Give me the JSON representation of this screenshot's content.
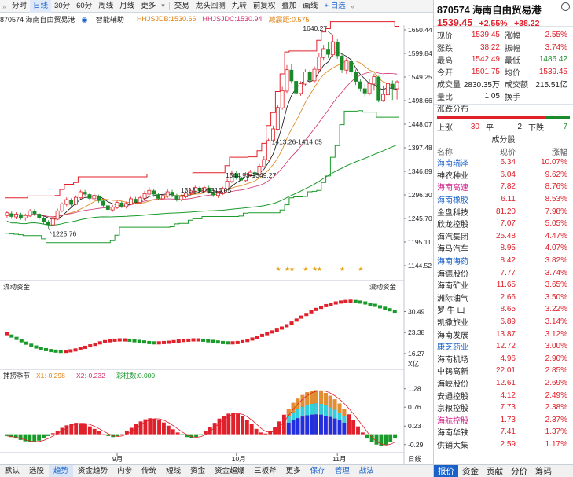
{
  "toolbar": {
    "items": [
      "分时",
      "日线",
      "30分",
      "60分",
      "周线",
      "月线",
      "更多",
      "交易",
      "龙头回测",
      "九转",
      "前复权",
      "叠加",
      "画线",
      "自选"
    ],
    "active_index": 1
  },
  "chart_info": {
    "code_name": "870574 海南自由贸易港",
    "smart_label": "智能辅助",
    "hhjsjdb": "HHJSJDB:1530.66",
    "hhjsjdc": "HHJSJDC:1530.94",
    "jdj": "减震距:0.575"
  },
  "price_annotations": {
    "high": "1640.27",
    "low": "1225.76",
    "range1": "1413.26-1414.05",
    "range2": "1344.93-1349.27",
    "range3": "1313.71-1315.05"
  },
  "indicator2": {
    "title": "流动资金",
    "title_right": "流动资金",
    "unit": "X亿"
  },
  "indicator3": {
    "title": "捕捞季节",
    "x1": "X1:-0.298",
    "x2": "X2:-0.232",
    "colorbar": "彩柱数:0.000"
  },
  "month_labels": [
    "9月",
    "10月",
    "11月"
  ],
  "axes": {
    "main": [
      "1650.44",
      "1599.84",
      "1549.25",
      "1498.66",
      "1448.07",
      "1397.48",
      "1346.89",
      "1296.30",
      "1245.70",
      "1195.11",
      "1144.52"
    ],
    "ind2": [
      "30.49",
      "23.38",
      "16.27"
    ],
    "ind3": [
      "1.28",
      "0.76",
      "0.23",
      "-0.29"
    ],
    "date_label": "日线"
  },
  "chart_data": {
    "type": "candlestick",
    "ylim": [
      1144.52,
      1650.44
    ],
    "high_point": 1640.27,
    "low_point": 1225.76,
    "ohlc": [
      [
        1252,
        1258,
        1262,
        1246
      ],
      [
        1256,
        1250,
        1261,
        1245
      ],
      [
        1249,
        1255,
        1259,
        1244
      ],
      [
        1254,
        1248,
        1258,
        1243
      ],
      [
        1247,
        1252,
        1256,
        1241
      ],
      [
        1251,
        1262,
        1266,
        1249
      ],
      [
        1261,
        1256,
        1266,
        1251
      ],
      [
        1255,
        1247,
        1258,
        1242
      ],
      [
        1246,
        1238,
        1250,
        1234
      ],
      [
        1238,
        1232,
        1242,
        1226
      ],
      [
        1232,
        1245,
        1250,
        1230
      ],
      [
        1244,
        1262,
        1267,
        1242
      ],
      [
        1262,
        1277,
        1280,
        1259
      ],
      [
        1276,
        1286,
        1291,
        1272
      ],
      [
        1285,
        1276,
        1289,
        1271
      ],
      [
        1276,
        1291,
        1295,
        1274
      ],
      [
        1290,
        1303,
        1307,
        1288
      ],
      [
        1302,
        1298,
        1307,
        1293
      ],
      [
        1297,
        1289,
        1301,
        1284
      ],
      [
        1288,
        1295,
        1299,
        1284
      ],
      [
        1294,
        1284,
        1297,
        1279
      ],
      [
        1283,
        1274,
        1287,
        1270
      ],
      [
        1273,
        1265,
        1277,
        1259
      ],
      [
        1264,
        1270,
        1275,
        1260
      ],
      [
        1269,
        1280,
        1284,
        1266
      ],
      [
        1279,
        1272,
        1283,
        1268
      ],
      [
        1271,
        1278,
        1282,
        1267
      ],
      [
        1277,
        1288,
        1292,
        1274
      ],
      [
        1287,
        1281,
        1292,
        1277
      ],
      [
        1280,
        1290,
        1295,
        1277
      ],
      [
        1289,
        1299,
        1305,
        1286
      ],
      [
        1298,
        1306,
        1313,
        1295
      ],
      [
        1305,
        1298,
        1310,
        1292
      ],
      [
        1297,
        1289,
        1301,
        1285
      ],
      [
        1288,
        1295,
        1300,
        1284
      ],
      [
        1294,
        1303,
        1308,
        1290
      ],
      [
        1302,
        1296,
        1307,
        1291
      ],
      [
        1295,
        1287,
        1299,
        1282
      ],
      [
        1286,
        1293,
        1297,
        1283
      ],
      [
        1292,
        1300,
        1305,
        1289
      ],
      [
        1299,
        1305,
        1310,
        1296
      ],
      [
        1304,
        1312,
        1316,
        1300
      ],
      [
        1311,
        1305,
        1315,
        1300
      ],
      [
        1304,
        1312,
        1316,
        1300
      ],
      [
        1311,
        1303,
        1316,
        1299
      ],
      [
        1302,
        1296,
        1306,
        1292
      ],
      [
        1295,
        1300,
        1304,
        1290
      ],
      [
        1299,
        1310,
        1314,
        1296
      ],
      [
        1309,
        1326,
        1331,
        1307
      ],
      [
        1325,
        1343,
        1349,
        1322
      ],
      [
        1342,
        1334,
        1347,
        1329
      ],
      [
        1333,
        1328,
        1338,
        1324
      ],
      [
        1327,
        1340,
        1345,
        1325
      ],
      [
        1339,
        1345,
        1350,
        1335
      ],
      [
        1344,
        1341,
        1349,
        1336
      ],
      [
        1340,
        1358,
        1363,
        1338
      ],
      [
        1357,
        1372,
        1379,
        1355
      ],
      [
        1371,
        1413,
        1417,
        1369
      ],
      [
        1412,
        1438,
        1445,
        1409
      ],
      [
        1437,
        1484,
        1490,
        1434
      ],
      [
        1483,
        1520,
        1528,
        1479
      ],
      [
        1519,
        1565,
        1575,
        1515
      ],
      [
        1564,
        1541,
        1577,
        1535
      ],
      [
        1540,
        1515,
        1547,
        1508
      ],
      [
        1514,
        1535,
        1540,
        1509
      ],
      [
        1534,
        1560,
        1566,
        1530
      ],
      [
        1559,
        1542,
        1564,
        1536
      ],
      [
        1541,
        1566,
        1572,
        1536
      ],
      [
        1565,
        1592,
        1600,
        1560
      ],
      [
        1591,
        1610,
        1618,
        1586
      ],
      [
        1609,
        1598,
        1625,
        1590
      ],
      [
        1597,
        1625,
        1640,
        1593
      ],
      [
        1624,
        1595,
        1630,
        1588
      ],
      [
        1594,
        1565,
        1600,
        1558
      ],
      [
        1564,
        1585,
        1590,
        1556
      ],
      [
        1584,
        1560,
        1590,
        1552
      ],
      [
        1559,
        1540,
        1565,
        1532
      ],
      [
        1539,
        1525,
        1545,
        1518
      ],
      [
        1524,
        1515,
        1535,
        1506
      ],
      [
        1514,
        1535,
        1545,
        1510
      ],
      [
        1534,
        1550,
        1556,
        1520
      ],
      [
        1549,
        1500,
        1552,
        1495
      ],
      [
        1499,
        1512,
        1531,
        1496
      ],
      [
        1511,
        1535,
        1538,
        1505
      ],
      [
        1534,
        1525,
        1542,
        1500
      ],
      [
        1524,
        1539,
        1542,
        1501
      ]
    ],
    "liquidity_series": [
      23,
      22.2,
      21.4,
      20.6,
      19.8,
      19.1,
      18.5,
      18.0,
      17.6,
      17.3,
      17.1,
      17.0,
      17.0,
      17.2,
      17.5,
      17.9,
      18.4,
      18.9,
      19.4,
      19.9,
      20.3,
      20.6,
      20.8,
      20.9,
      20.9,
      20.8,
      20.6,
      20.4,
      20.2,
      20.0,
      19.9,
      19.9,
      20.0,
      20.1,
      20.3,
      20.5,
      20.7,
      20.8,
      20.9,
      20.9,
      20.8,
      20.6,
      20.4,
      20.2,
      20.0,
      19.9,
      19.9,
      20.0,
      20.3,
      20.7,
      21.2,
      21.8,
      22.4,
      23.0,
      23.6,
      24.2,
      24.9,
      25.7,
      26.6,
      27.6,
      28.6,
      29.5,
      30.4,
      31.2,
      31.9,
      32.5,
      33.0,
      33.4,
      33.7,
      33.9,
      34.0,
      33.9,
      33.7,
      33.4,
      33.0,
      32.6,
      32.1,
      31.6,
      31.1,
      30.6
    ],
    "season_series": [
      -0.05,
      -0.08,
      -0.12,
      -0.16,
      -0.2,
      -0.22,
      -0.21,
      -0.18,
      -0.12,
      -0.05,
      0.03,
      0.1,
      0.18,
      0.25,
      0.3,
      0.32,
      0.31,
      0.28,
      0.22,
      0.15,
      0.08,
      0.0,
      -0.05,
      -0.08,
      -0.06,
      0.0,
      0.08,
      0.18,
      0.28,
      0.36,
      0.42,
      0.45,
      0.44,
      0.4,
      0.33,
      0.24,
      0.14,
      0.05,
      -0.03,
      -0.08,
      -0.1,
      -0.08,
      -0.02,
      0.08,
      0.2,
      0.32,
      0.44,
      0.52,
      0.58,
      0.6,
      0.57,
      0.5,
      0.4,
      0.28,
      0.15,
      0.05,
      0.02,
      0.08,
      0.2,
      0.36,
      0.55,
      0.72,
      0.88,
      1.0,
      1.1,
      1.18,
      1.22,
      1.24,
      1.22,
      1.16,
      1.08,
      0.98,
      0.86,
      0.72,
      0.56,
      0.4,
      0.22,
      0.05,
      -0.12,
      -0.22,
      -0.29,
      -0.32,
      -0.3,
      -0.22,
      -0.12
    ]
  },
  "right_panel": {
    "title": "870574 海南自由贸易港",
    "price": "1539.45",
    "change_pct": "+2.55%",
    "change": "+38.22",
    "quote_rows": [
      [
        "现价",
        "1539.45",
        "涨幅",
        "2.55%"
      ],
      [
        "涨跌",
        "38.22",
        "振幅",
        "3.74%"
      ],
      [
        "最高",
        "1542.49",
        "最低",
        "1486.42"
      ],
      [
        "今开",
        "1501.75",
        "均价",
        "1539.45"
      ],
      [
        "成交量",
        "2830.35万",
        "成交额",
        "215.51亿"
      ],
      [
        "量比",
        "1.05",
        "换手",
        ""
      ]
    ],
    "dist_title": "涨跌分布",
    "dist_up_label": "上涨",
    "dist_up": "30",
    "dist_flat_label": "平",
    "dist_flat": "2",
    "dist_down_label": "下跌",
    "dist_down": "7",
    "comp_title": "成分股",
    "comp_head": [
      "名称",
      "现价",
      "涨幅"
    ],
    "components": [
      [
        "海南瑞泽",
        "6.34",
        "10.07%"
      ],
      [
        "神农种业",
        "6.04",
        "9.62%"
      ],
      [
        "海南高速",
        "7.82",
        "8.76%"
      ],
      [
        "海南橡胶",
        "6.11",
        "8.53%"
      ],
      [
        "金盘科技",
        "81.20",
        "7.98%"
      ],
      [
        "欣龙控股",
        "7.07",
        "5.05%"
      ],
      [
        "海汽集团",
        "25.48",
        "4.47%"
      ],
      [
        "海马汽车",
        "8.95",
        "4.07%"
      ],
      [
        "海南海药",
        "8.42",
        "3.82%"
      ],
      [
        "海德股份",
        "7.77",
        "3.74%"
      ],
      [
        "海南矿业",
        "11.65",
        "3.65%"
      ],
      [
        "洲际油气",
        "2.66",
        "3.50%"
      ],
      [
        "罗 牛 山",
        "8.65",
        "3.22%"
      ],
      [
        "凯撒旅业",
        "6.89",
        "3.14%"
      ],
      [
        "海南发展",
        "13.87",
        "3.12%"
      ],
      [
        "康芝药业",
        "12.72",
        "3.00%"
      ],
      [
        "海南机场",
        "4.96",
        "2.90%"
      ],
      [
        "中钨高新",
        "22.01",
        "2.85%"
      ],
      [
        "海峡股份",
        "12.61",
        "2.69%"
      ],
      [
        "安通控股",
        "4.12",
        "2.49%"
      ],
      [
        "京粮控股",
        "7.73",
        "2.38%"
      ],
      [
        "海航控股",
        "1.73",
        "2.37%"
      ],
      [
        "海南华铁",
        "7.41",
        "1.37%"
      ],
      [
        "供销大集",
        "2.59",
        "1.17%"
      ]
    ],
    "blue_names": [
      0,
      2,
      3,
      8,
      15,
      21
    ],
    "magenta_names": [
      2,
      21
    ]
  },
  "bottom_tabs": [
    "默认",
    "选股",
    "趋势",
    "资金趋势",
    "内参",
    "传统",
    "短线",
    "资金",
    "资金超爆",
    "三板斧",
    "更多",
    "保存",
    "管理",
    "战法"
  ],
  "bottom_active": 2,
  "right_tabs": [
    "报价",
    "资金",
    "贡献",
    "分价",
    "筹码"
  ],
  "right_active": 0
}
